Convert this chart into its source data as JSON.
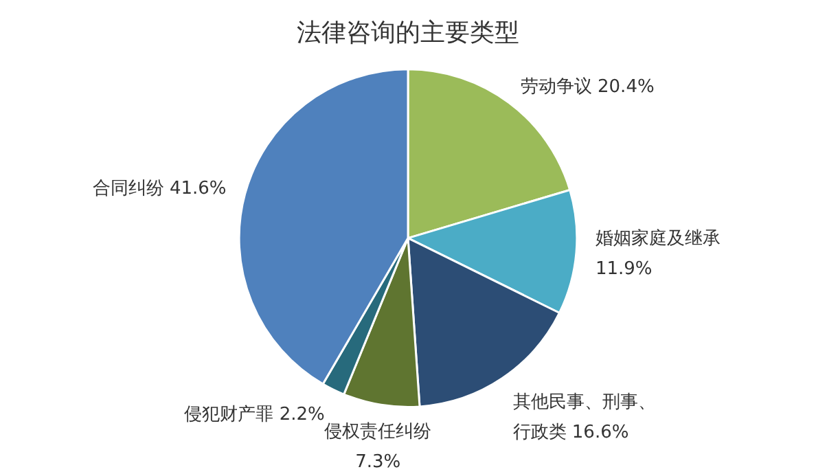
{
  "chart_data": {
    "type": "pie",
    "title": "法律咨询的主要类型",
    "categories": [
      "劳动争议",
      "婚姻家庭及继承",
      "其他民事、刑事、行政类",
      "侵权责任纠纷",
      "侵犯财产罪",
      "合同纠纷"
    ],
    "values": [
      20.4,
      11.9,
      16.6,
      7.3,
      2.2,
      41.6
    ],
    "value_labels": [
      "20.4%",
      "11.9%",
      "16.6%",
      "7.3%",
      "2.2%",
      "41.6%"
    ],
    "colors": [
      "#9bbb59",
      "#4bacc6",
      "#2c4d75",
      "#5f7530",
      "#276a7c",
      "#4f81bd"
    ],
    "legend": false
  }
}
